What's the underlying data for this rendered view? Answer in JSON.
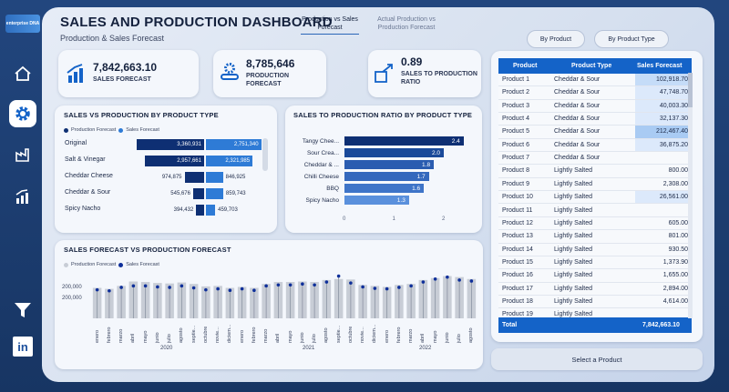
{
  "header": {
    "title": "SALES AND PRODUCTION DASHBOARD",
    "subtitle": "Production & Sales Forecast",
    "tabs": [
      {
        "label": "Production vs Sales Forecast",
        "active": true
      },
      {
        "label": "Actual Production vs Production Forecast",
        "active": false
      }
    ],
    "buttons": {
      "by_product": "By Product",
      "by_product_type": "By Product Type"
    }
  },
  "sidebar": {
    "logo_text": "enterprise DNA",
    "items": [
      {
        "icon": "home-icon"
      },
      {
        "icon": "gear-icon",
        "active": true
      },
      {
        "icon": "factory-icon"
      },
      {
        "icon": "growth-chart-icon"
      },
      {
        "icon": "filter-icon"
      },
      {
        "icon": "linkedin-icon",
        "text": "in"
      }
    ]
  },
  "kpis": [
    {
      "value": "7,842,663.10",
      "label": "SALES FORECAST",
      "icon": "growth-icon"
    },
    {
      "value": "8,785,646",
      "label": "PRODUCTION FORECAST",
      "icon": "gears-icon"
    },
    {
      "value": "0.89",
      "label": "SALES TO PRODUCTION RATIO",
      "icon": "ratio-icon"
    }
  ],
  "sales_vs_production": {
    "title": "SALES VS PRODUCTION BY PRODUCT TYPE",
    "legend": [
      "Production Forecast",
      "Sales Forecast"
    ],
    "colors": {
      "production": "#0e2f73",
      "sales": "#2e7bd6"
    },
    "rows": [
      {
        "category": "Original",
        "production": "3,360,931",
        "sales": "2,751,340"
      },
      {
        "category": "Salt & Vinegar",
        "production": "2,957,661",
        "sales": "2,321,985"
      },
      {
        "category": "Cheddar Cheese",
        "production": "974,875",
        "sales": "846,925"
      },
      {
        "category": "Cheddar & Sour",
        "production": "545,676",
        "sales": "859,743"
      },
      {
        "category": "Spicy Nacho",
        "production": "394,432",
        "sales": "459,703"
      }
    ]
  },
  "ratio_chart": {
    "title": "SALES TO PRODUCTION RATIO BY PRODUCT TYPE",
    "rows": [
      {
        "category": "Tangy Chee...",
        "value": 2.4,
        "label": "2.4",
        "color": "#0e2f73"
      },
      {
        "category": "Sour Crea...",
        "value": 2.0,
        "label": "2.0",
        "color": "#1a4a9a"
      },
      {
        "category": "Cheddar & ...",
        "value": 1.8,
        "label": "1.8",
        "color": "#2a5cb0"
      },
      {
        "category": "Chilli Cheese",
        "value": 1.7,
        "label": "1.7",
        "color": "#3468bd"
      },
      {
        "category": "BBQ",
        "value": 1.6,
        "label": "1.6",
        "color": "#3e74c8"
      },
      {
        "category": "Spicy Nacho",
        "value": 1.3,
        "label": "1.3",
        "color": "#5a90dc"
      }
    ],
    "ticks": [
      "0",
      "1",
      "2"
    ]
  },
  "forecast_chart": {
    "title": "SALES FORECAST VS PRODUCTION FORECAST",
    "legend": [
      "Production Forecast",
      "Sales Forecast"
    ],
    "colors": {
      "production": "#c8cdd6",
      "sales": "#0e2f9a"
    },
    "y_tick": "200,000",
    "months": [
      "enero",
      "febrero",
      "marzo",
      "abril",
      "mayo",
      "junio",
      "julio",
      "agosto",
      "septie...",
      "octubre",
      "novie...",
      "diciem...",
      "enero",
      "febrero",
      "marzo",
      "abril",
      "mayo",
      "junio",
      "julio",
      "agosto",
      "septie...",
      "octubre",
      "novie...",
      "diciem...",
      "enero",
      "febrero",
      "marzo",
      "abril",
      "mayo",
      "junio",
      "julio",
      "agosto"
    ],
    "years": [
      "2020",
      "2021",
      "2022"
    ],
    "production": [
      0.62,
      0.6,
      0.66,
      0.75,
      0.74,
      0.72,
      0.71,
      0.73,
      0.7,
      0.65,
      0.66,
      0.62,
      0.64,
      0.62,
      0.7,
      0.74,
      0.74,
      0.75,
      0.74,
      0.78,
      0.8,
      0.79,
      0.68,
      0.66,
      0.64,
      0.68,
      0.7,
      0.78,
      0.82,
      0.86,
      0.84,
      0.8
    ],
    "sales": [
      0.58,
      0.56,
      0.63,
      0.66,
      0.66,
      0.64,
      0.63,
      0.66,
      0.62,
      0.58,
      0.6,
      0.57,
      0.6,
      0.57,
      0.66,
      0.68,
      0.68,
      0.7,
      0.68,
      0.74,
      0.86,
      0.72,
      0.64,
      0.61,
      0.6,
      0.63,
      0.66,
      0.74,
      0.8,
      0.84,
      0.78,
      0.76
    ]
  },
  "table": {
    "columns": [
      "Product",
      "Product Type",
      "Sales Forecast"
    ],
    "rows": [
      {
        "product": "Product 1",
        "type": "Cheddar & Sour",
        "sales": "102,918.70",
        "hl": 2
      },
      {
        "product": "Product 2",
        "type": "Cheddar & Sour",
        "sales": "47,748.70",
        "hl": 1
      },
      {
        "product": "Product 3",
        "type": "Cheddar & Sour",
        "sales": "40,003.30",
        "hl": 1
      },
      {
        "product": "Product 4",
        "type": "Cheddar & Sour",
        "sales": "32,137.30",
        "hl": 1
      },
      {
        "product": "Product 5",
        "type": "Cheddar & Sour",
        "sales": "212,467.40",
        "hl": 3
      },
      {
        "product": "Product 6",
        "type": "Cheddar & Sour",
        "sales": "36,875.20",
        "hl": 1
      },
      {
        "product": "Product 7",
        "type": "Cheddar & Sour",
        "sales": "",
        "hl": 0
      },
      {
        "product": "Product 8",
        "type": "Lightly Salted",
        "sales": "800.00",
        "hl": 0
      },
      {
        "product": "Product 9",
        "type": "Lightly Salted",
        "sales": "2,308.00",
        "hl": 0
      },
      {
        "product": "Product 10",
        "type": "Lightly Salted",
        "sales": "26,561.00",
        "hl": 1
      },
      {
        "product": "Product 11",
        "type": "Lightly Salted",
        "sales": "",
        "hl": 0
      },
      {
        "product": "Product 12",
        "type": "Lightly Salted",
        "sales": "605.00",
        "hl": 0
      },
      {
        "product": "Product 13",
        "type": "Lightly Salted",
        "sales": "801.00",
        "hl": 0
      },
      {
        "product": "Product 14",
        "type": "Lightly Salted",
        "sales": "930.50",
        "hl": 0
      },
      {
        "product": "Product 15",
        "type": "Lightly Salted",
        "sales": "1,373.90",
        "hl": 0
      },
      {
        "product": "Product 16",
        "type": "Lightly Salted",
        "sales": "1,655.00",
        "hl": 0
      },
      {
        "product": "Product 17",
        "type": "Lightly Salted",
        "sales": "2,894.00",
        "hl": 0
      },
      {
        "product": "Product 18",
        "type": "Lightly Salted",
        "sales": "4,614.00",
        "hl": 0
      },
      {
        "product": "Product 19",
        "type": "Lightly Salted",
        "sales": "",
        "hl": 0
      }
    ],
    "total_label": "Total",
    "total_value": "7,842,663.10"
  },
  "select_product": "Select a Product"
}
